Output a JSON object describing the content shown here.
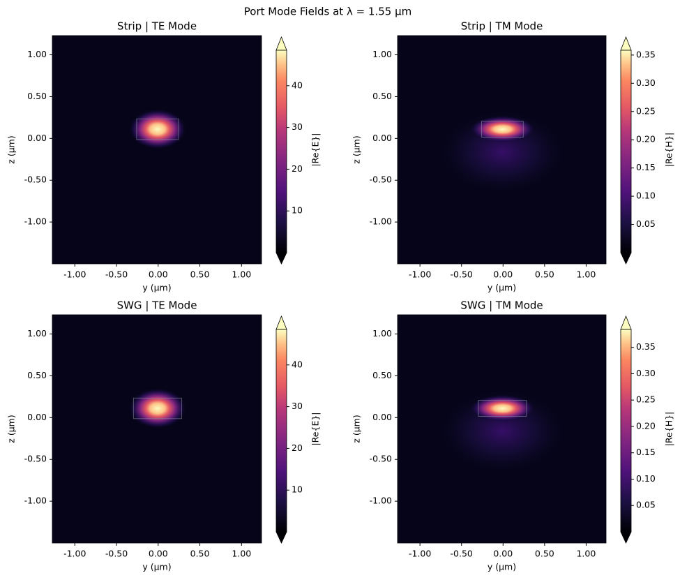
{
  "title": "Port Mode Fields at λ = 1.55 µm",
  "chart_data": [
    {
      "type": "heatmap",
      "title": "Strip | TE Mode",
      "xlabel": "y (µm)",
      "ylabel": "z (µm)",
      "xlim": [
        -1.27,
        1.24
      ],
      "ylim": [
        -1.5,
        1.23
      ],
      "xticks": [
        {
          "value": -1,
          "label": "-1.00"
        },
        {
          "value": -0.5,
          "label": "-0.50"
        },
        {
          "value": 0,
          "label": "0.00"
        },
        {
          "value": 0.5,
          "label": "0.50"
        },
        {
          "value": 1,
          "label": "1.00"
        }
      ],
      "yticks": [
        {
          "value": -1,
          "label": "-1.00"
        },
        {
          "value": -0.5,
          "label": "-0.50"
        },
        {
          "value": 0,
          "label": "0.00"
        },
        {
          "value": 0.5,
          "label": "0.50"
        },
        {
          "value": 1,
          "label": "1.00"
        }
      ],
      "colorbar": {
        "label": "|Re{E}|",
        "lim": [
          0,
          48.5
        ],
        "ticks": [
          10,
          20,
          30,
          40
        ]
      }
    },
    {
      "type": "heatmap",
      "title": "Strip | TM Mode",
      "xlabel": "y (µm)",
      "ylabel": "z (µm)",
      "xlim": [
        -1.27,
        1.24
      ],
      "ylim": [
        -1.5,
        1.23
      ],
      "xticks": [
        {
          "value": -1,
          "label": "-1.00"
        },
        {
          "value": -0.5,
          "label": "-0.50"
        },
        {
          "value": 0,
          "label": "0.00"
        },
        {
          "value": 0.5,
          "label": "0.50"
        },
        {
          "value": 1,
          "label": "1.00"
        }
      ],
      "yticks": [
        {
          "value": -1,
          "label": "-1.00"
        },
        {
          "value": -0.5,
          "label": "-0.50"
        },
        {
          "value": 0,
          "label": "0.00"
        },
        {
          "value": 0.5,
          "label": "0.50"
        },
        {
          "value": 1,
          "label": "1.00"
        }
      ],
      "colorbar": {
        "label": "|Re{H}|",
        "lim": [
          0,
          0.3585
        ],
        "ticks": [
          0.05,
          {
            "value": 0.1,
            "label": "0.10"
          },
          0.15,
          {
            "value": 0.2,
            "label": "0.20"
          },
          0.25,
          {
            "value": 0.3,
            "label": "0.30"
          },
          0.35
        ]
      }
    },
    {
      "type": "heatmap",
      "title": "SWG | TE Mode",
      "xlabel": "y (µm)",
      "ylabel": "z (µm)",
      "xlim": [
        -1.27,
        1.24
      ],
      "ylim": [
        -1.5,
        1.23
      ],
      "xticks": [
        {
          "value": -1,
          "label": "-1.00"
        },
        {
          "value": -0.5,
          "label": "-0.50"
        },
        {
          "value": 0,
          "label": "0.00"
        },
        {
          "value": 0.5,
          "label": "0.50"
        },
        {
          "value": 1,
          "label": "1.00"
        }
      ],
      "yticks": [
        {
          "value": -1,
          "label": "-1.00"
        },
        {
          "value": -0.5,
          "label": "-0.50"
        },
        {
          "value": 0,
          "label": "0.00"
        },
        {
          "value": 0.5,
          "label": "0.50"
        },
        {
          "value": 1,
          "label": "1.00"
        }
      ],
      "colorbar": {
        "label": "|Re{E}|",
        "lim": [
          0,
          48.5
        ],
        "ticks": [
          10,
          20,
          30,
          40
        ]
      }
    },
    {
      "type": "heatmap",
      "title": "SWG | TM Mode",
      "xlabel": "y (µm)",
      "ylabel": "z (µm)",
      "xlim": [
        -1.27,
        1.24
      ],
      "ylim": [
        -1.5,
        1.23
      ],
      "xticks": [
        {
          "value": -1,
          "label": "-1.00"
        },
        {
          "value": -0.5,
          "label": "-0.50"
        },
        {
          "value": 0,
          "label": "0.00"
        },
        {
          "value": 0.5,
          "label": "0.50"
        },
        {
          "value": 1,
          "label": "1.00"
        }
      ],
      "yticks": [
        {
          "value": -1,
          "label": "-1.00"
        },
        {
          "value": -0.5,
          "label": "-0.50"
        },
        {
          "value": 0,
          "label": "0.00"
        },
        {
          "value": 0.5,
          "label": "0.50"
        },
        {
          "value": 1,
          "label": "1.00"
        }
      ],
      "colorbar": {
        "label": "|Re{H}|",
        "lim": [
          0,
          0.384
        ],
        "ticks": [
          0.05,
          {
            "value": 0.1,
            "label": "0.10"
          },
          0.15,
          {
            "value": 0.2,
            "label": "0.20"
          },
          0.25,
          {
            "value": 0.3,
            "label": "0.30"
          },
          0.35
        ]
      }
    }
  ]
}
